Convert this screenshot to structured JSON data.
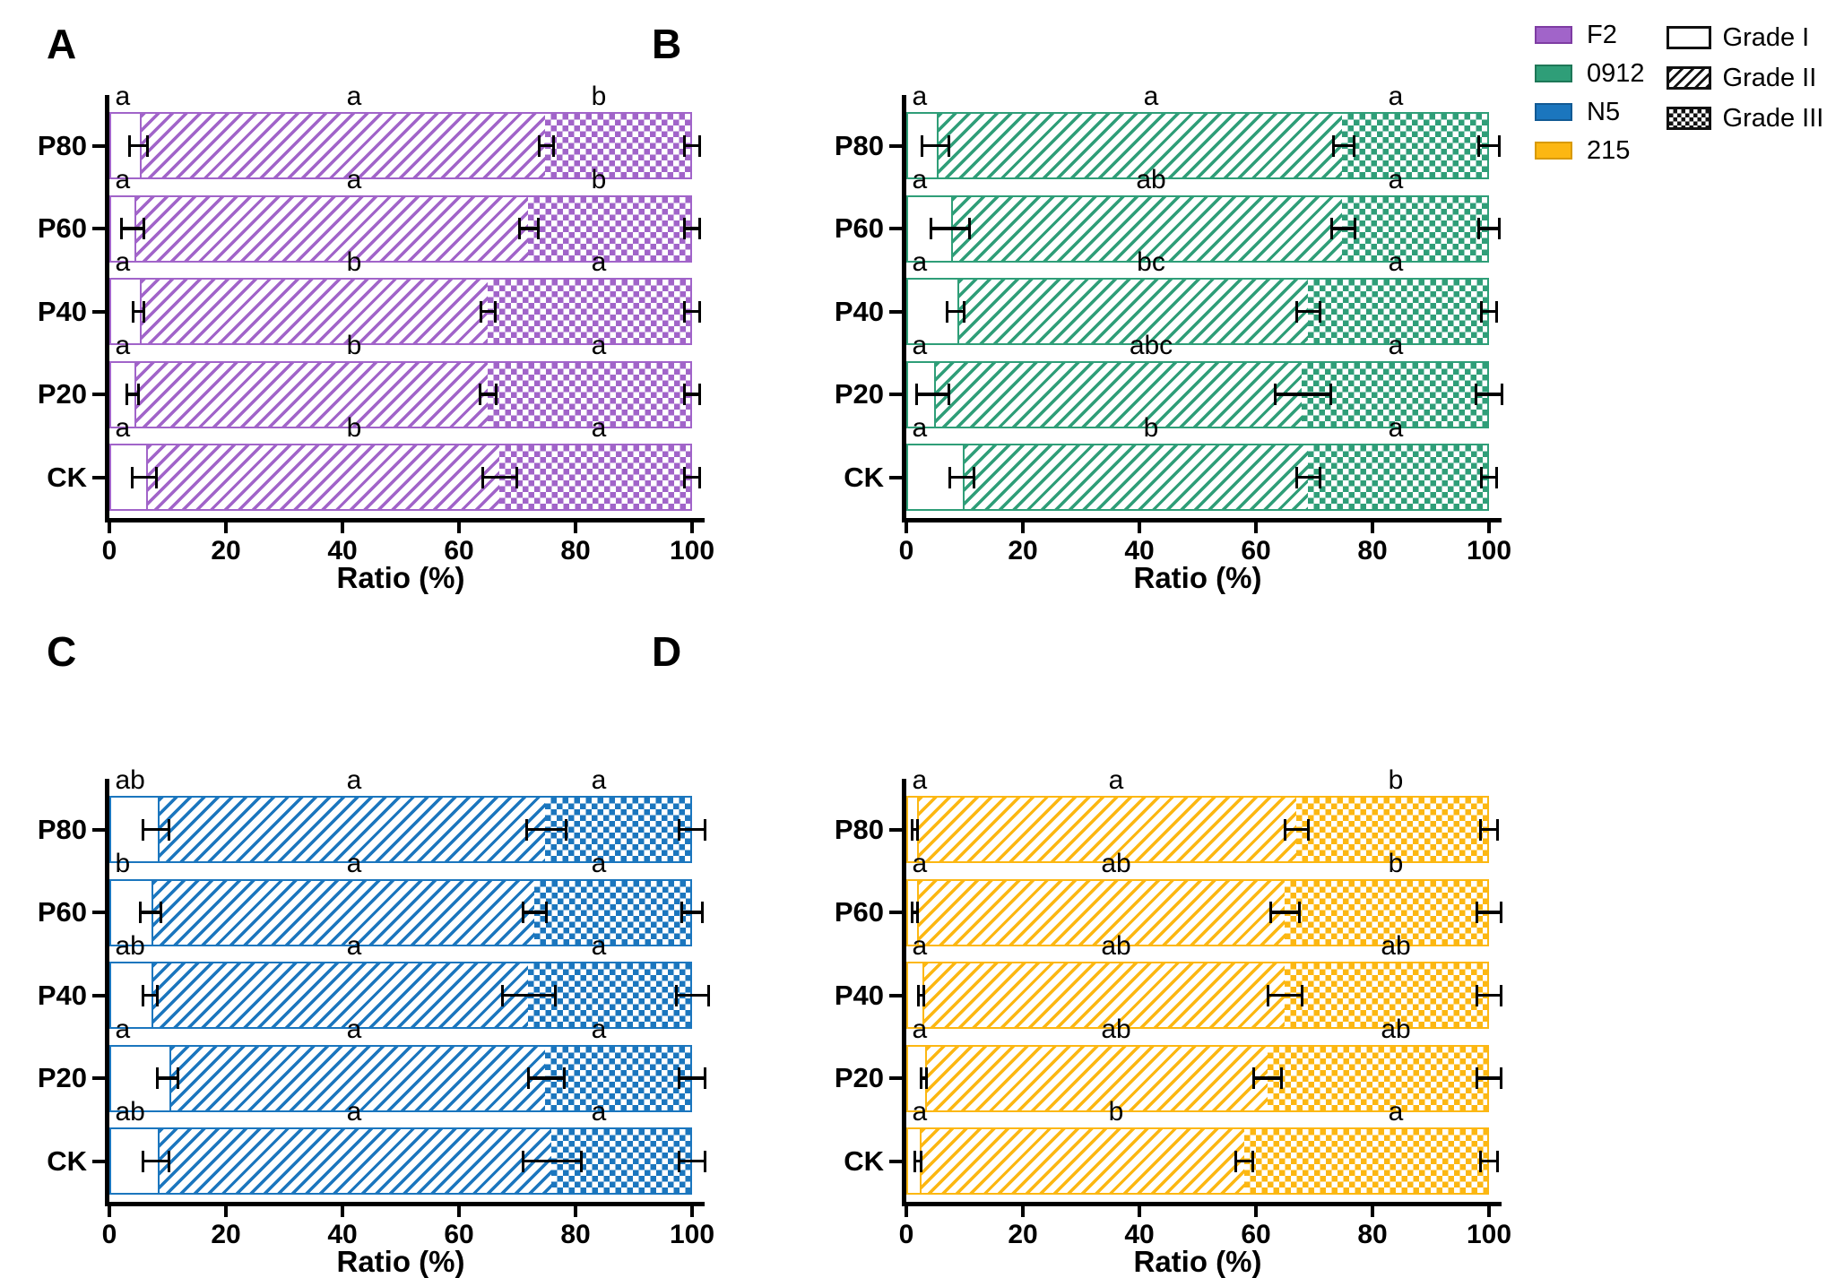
{
  "axis": {
    "xlabel": "Ratio (%)",
    "ticks": [
      0,
      20,
      40,
      60,
      80,
      100
    ],
    "xlim": [
      0,
      100
    ]
  },
  "legend": {
    "position": "top-right",
    "series": [
      {
        "label": "F2",
        "color": "#a164c9",
        "border": "#7e3ca3"
      },
      {
        "label": "0912",
        "color": "#2f9e78",
        "border": "#1e7757"
      },
      {
        "label": "N5",
        "color": "#1b76be",
        "border": "#125a94"
      },
      {
        "label": "215",
        "color": "#fcb712",
        "border": "#d89a00"
      }
    ],
    "grades": [
      {
        "label": "Grade I",
        "pattern": "solid-white"
      },
      {
        "label": "Grade II",
        "pattern": "diagonal-hatch"
      },
      {
        "label": "Grade III",
        "pattern": "checker"
      }
    ]
  },
  "chart_data": [
    {
      "panel": "A",
      "type": "bar",
      "orientation": "horizontal",
      "stacked": true,
      "series_name": "F2",
      "color": "#a164c9",
      "categories": [
        "P80",
        "P60",
        "P40",
        "P20",
        "CK"
      ],
      "xlabel": "Ratio (%)",
      "xlim": [
        0,
        100
      ],
      "errors_at": "cumulative-end",
      "stack": [
        {
          "name": "Grade I",
          "pattern": "solid-white",
          "values": [
            5,
            4,
            5,
            4,
            6
          ],
          "errors": [
            1.7,
            2.2,
            1.1,
            1.2,
            2.3
          ],
          "letters": [
            "a",
            "a",
            "a",
            "a",
            "a"
          ]
        },
        {
          "name": "Grade II",
          "pattern": "diagonal-hatch",
          "values": [
            70,
            68,
            60,
            61,
            61
          ],
          "errors": [
            1.5,
            1.8,
            1.5,
            1.6,
            3.2
          ],
          "letters": [
            "a",
            "a",
            "b",
            "b",
            "b"
          ]
        },
        {
          "name": "Grade III",
          "pattern": "checker",
          "values": [
            25,
            28,
            35,
            35,
            33
          ],
          "errors": [
            1.5,
            1.5,
            1.5,
            1.5,
            1.5
          ],
          "letters": [
            "b",
            "b",
            "a",
            "a",
            "a"
          ]
        }
      ],
      "letter_x": {
        "g1": 1,
        "g2": 42,
        "g3": 84
      }
    },
    {
      "panel": "B",
      "type": "bar",
      "orientation": "horizontal",
      "stacked": true,
      "series_name": "0912",
      "color": "#2f9e78",
      "categories": [
        "P80",
        "P60",
        "P40",
        "P20",
        "CK"
      ],
      "xlabel": "Ratio (%)",
      "xlim": [
        0,
        100
      ],
      "errors_at": "cumulative-end",
      "stack": [
        {
          "name": "Grade I",
          "pattern": "solid-white",
          "values": [
            5,
            7.5,
            8.5,
            4.5,
            9.5
          ],
          "errors": [
            2.5,
            3.5,
            1.7,
            3,
            2.3
          ],
          "letters": [
            "a",
            "a",
            "a",
            "a",
            "a"
          ]
        },
        {
          "name": "Grade II",
          "pattern": "diagonal-hatch",
          "values": [
            70,
            67.5,
            60.5,
            63.5,
            59.5
          ],
          "errors": [
            2,
            2.3,
            2.2,
            5,
            2.3
          ],
          "letters": [
            "a",
            "ab",
            "bc",
            "abc",
            "b"
          ]
        },
        {
          "name": "Grade III",
          "pattern": "checker",
          "values": [
            25,
            25,
            31,
            32,
            31
          ],
          "errors": [
            2,
            2,
            1.5,
            2.5,
            1.5
          ],
          "letters": [
            "a",
            "a",
            "a",
            "a",
            "a"
          ]
        }
      ],
      "letter_x": {
        "g1": 1,
        "g2": 42,
        "g3": 84
      }
    },
    {
      "panel": "C",
      "type": "bar",
      "orientation": "horizontal",
      "stacked": true,
      "series_name": "N5",
      "color": "#1b76be",
      "categories": [
        "P80",
        "P60",
        "P40",
        "P20",
        "CK"
      ],
      "xlabel": "Ratio (%)",
      "xlim": [
        0,
        100
      ],
      "errors_at": "cumulative-end",
      "stack": [
        {
          "name": "Grade I",
          "pattern": "solid-white",
          "values": [
            8,
            7,
            7,
            10,
            8
          ],
          "errors": [
            2.5,
            2,
            1.5,
            2,
            2.4
          ],
          "letters": [
            "ab",
            "b",
            "ab",
            "a",
            "ab"
          ]
        },
        {
          "name": "Grade II",
          "pattern": "diagonal-hatch",
          "values": [
            67,
            66,
            65,
            65,
            68
          ],
          "errors": [
            3.6,
            2.3,
            4.8,
            3.3,
            5.2
          ],
          "letters": [
            "a",
            "a",
            "a",
            "a",
            "a"
          ]
        },
        {
          "name": "Grade III",
          "pattern": "checker",
          "values": [
            25,
            27,
            28,
            25,
            24
          ],
          "errors": [
            2.5,
            2,
            3,
            2.5,
            2.5
          ],
          "letters": [
            "a",
            "a",
            "a",
            "a",
            "a"
          ]
        }
      ],
      "letter_x": {
        "g1": 1,
        "g2": 42,
        "g3": 84
      }
    },
    {
      "panel": "D",
      "type": "bar",
      "orientation": "horizontal",
      "stacked": true,
      "series_name": "215",
      "color": "#fcb712",
      "categories": [
        "P80",
        "P60",
        "P40",
        "P20",
        "CK"
      ],
      "xlabel": "Ratio (%)",
      "xlim": [
        0,
        100
      ],
      "errors_at": "cumulative-end",
      "stack": [
        {
          "name": "Grade I",
          "pattern": "solid-white",
          "values": [
            1.5,
            1.5,
            2.5,
            3,
            2
          ],
          "errors": [
            0.7,
            0.7,
            0.7,
            0.7,
            0.7
          ],
          "letters": [
            "a",
            "a",
            "a",
            "a",
            "a"
          ]
        },
        {
          "name": "Grade II",
          "pattern": "diagonal-hatch",
          "values": [
            65.5,
            63.5,
            62.5,
            59,
            56
          ],
          "errors": [
            2.3,
            2.7,
            3.2,
            2.6,
            1.7
          ],
          "letters": [
            "a",
            "ab",
            "ab",
            "ab",
            "b"
          ]
        },
        {
          "name": "Grade III",
          "pattern": "checker",
          "values": [
            33,
            35,
            35,
            38,
            42
          ],
          "errors": [
            1.7,
            2.3,
            2.3,
            2.3,
            1.7
          ],
          "letters": [
            "b",
            "b",
            "ab",
            "ab",
            "a"
          ]
        }
      ],
      "letter_x": {
        "g1": 1,
        "g2": 36,
        "g3": 84
      }
    }
  ]
}
